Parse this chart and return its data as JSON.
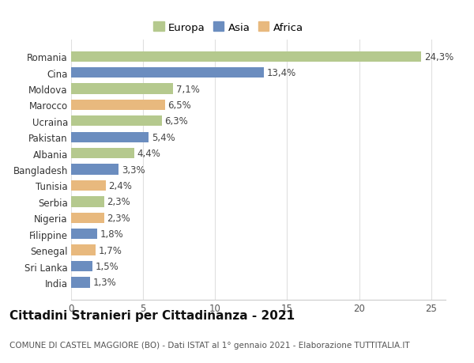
{
  "categories": [
    "Romania",
    "Cina",
    "Moldova",
    "Marocco",
    "Ucraina",
    "Pakistan",
    "Albania",
    "Bangladesh",
    "Tunisia",
    "Serbia",
    "Nigeria",
    "Filippine",
    "Senegal",
    "Sri Lanka",
    "India"
  ],
  "values": [
    24.3,
    13.4,
    7.1,
    6.5,
    6.3,
    5.4,
    4.4,
    3.3,
    2.4,
    2.3,
    2.3,
    1.8,
    1.7,
    1.5,
    1.3
  ],
  "labels": [
    "24,3%",
    "13,4%",
    "7,1%",
    "6,5%",
    "6,3%",
    "5,4%",
    "4,4%",
    "3,3%",
    "2,4%",
    "2,3%",
    "2,3%",
    "1,8%",
    "1,7%",
    "1,5%",
    "1,3%"
  ],
  "continents": [
    "Europa",
    "Asia",
    "Europa",
    "Africa",
    "Europa",
    "Asia",
    "Europa",
    "Asia",
    "Africa",
    "Europa",
    "Africa",
    "Asia",
    "Africa",
    "Asia",
    "Asia"
  ],
  "colors": {
    "Europa": "#b5c98e",
    "Asia": "#6b8dbf",
    "Africa": "#e8b97e"
  },
  "legend_labels": [
    "Europa",
    "Asia",
    "Africa"
  ],
  "title": "Cittadini Stranieri per Cittadinanza - 2021",
  "subtitle": "COMUNE DI CASTEL MAGGIORE (BO) - Dati ISTAT al 1° gennaio 2021 - Elaborazione TUTTITALIA.IT",
  "xlim": [
    0,
    26
  ],
  "xticks": [
    0,
    5,
    10,
    15,
    20,
    25
  ],
  "background_color": "#ffffff",
  "grid_color": "#e0e0e0",
  "bar_height": 0.65,
  "label_fontsize": 8.5,
  "title_fontsize": 11,
  "subtitle_fontsize": 7.5,
  "tick_fontsize": 8.5,
  "legend_fontsize": 9.5
}
